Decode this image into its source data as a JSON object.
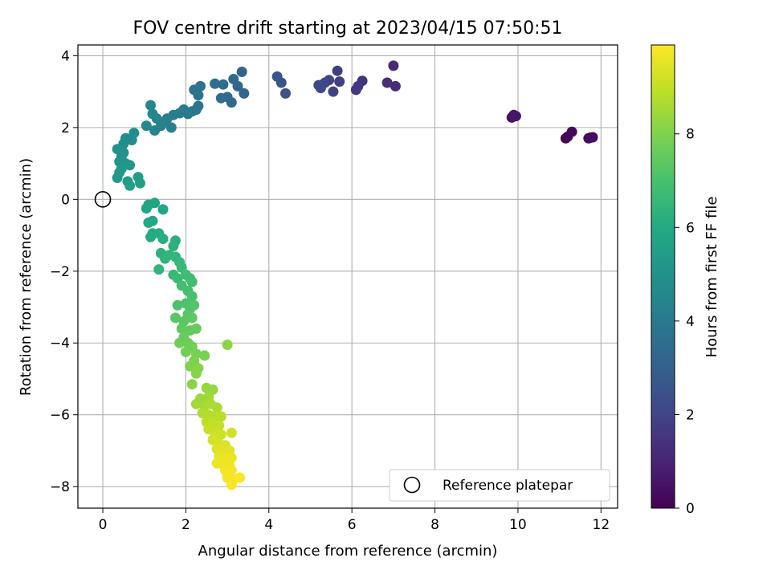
{
  "chart_data": {
    "type": "scatter",
    "title": "FOV centre drift starting at 2023/04/15 07:50:51",
    "xlabel": "Angular distance from reference (arcmin)",
    "ylabel": "Rotation from reference (arcmin)",
    "xlim": [
      -0.6,
      12.4
    ],
    "ylim": [
      -8.6,
      4.3
    ],
    "xticks": [
      0,
      2,
      4,
      6,
      8,
      10,
      12
    ],
    "yticks": [
      -8,
      -6,
      -4,
      -2,
      0,
      2,
      4
    ],
    "grid": true,
    "legend": {
      "position": "bottom-right",
      "entries": [
        "Reference platepar"
      ]
    },
    "reference_point": {
      "x": 0,
      "y": 0
    },
    "colorbar": {
      "label": "Hours from first FF file",
      "colormap": "viridis",
      "range": [
        0,
        9.9
      ],
      "ticks": [
        0,
        2,
        4,
        6,
        8
      ]
    },
    "series": [
      {
        "points": [
          {
            "x": 11.15,
            "y": 1.7,
            "c": 0.1
          },
          {
            "x": 11.2,
            "y": 1.75,
            "c": 0.15
          },
          {
            "x": 11.3,
            "y": 1.88,
            "c": 0.2
          },
          {
            "x": 11.7,
            "y": 1.7,
            "c": 0.25
          },
          {
            "x": 11.8,
            "y": 1.73,
            "c": 0.3
          },
          {
            "x": 11.75,
            "y": 1.72,
            "c": 0.35
          },
          {
            "x": 9.85,
            "y": 2.28,
            "c": 0.5
          },
          {
            "x": 9.9,
            "y": 2.35,
            "c": 0.55
          },
          {
            "x": 9.95,
            "y": 2.32,
            "c": 0.6
          },
          {
            "x": 7.0,
            "y": 3.72,
            "c": 1.2
          },
          {
            "x": 7.05,
            "y": 3.15,
            "c": 1.25
          },
          {
            "x": 6.85,
            "y": 3.25,
            "c": 1.3
          },
          {
            "x": 6.25,
            "y": 3.3,
            "c": 1.5
          },
          {
            "x": 6.15,
            "y": 3.15,
            "c": 1.55
          },
          {
            "x": 6.1,
            "y": 3.05,
            "c": 1.6
          },
          {
            "x": 5.65,
            "y": 3.58,
            "c": 1.8
          },
          {
            "x": 5.7,
            "y": 3.28,
            "c": 1.85
          },
          {
            "x": 5.55,
            "y": 3.0,
            "c": 1.9
          },
          {
            "x": 5.45,
            "y": 3.32,
            "c": 2.0
          },
          {
            "x": 5.35,
            "y": 3.25,
            "c": 2.05
          },
          {
            "x": 5.25,
            "y": 3.1,
            "c": 2.1
          },
          {
            "x": 5.2,
            "y": 3.18,
            "c": 2.15
          },
          {
            "x": 4.4,
            "y": 2.95,
            "c": 2.5
          },
          {
            "x": 4.3,
            "y": 3.25,
            "c": 2.55
          },
          {
            "x": 4.2,
            "y": 3.42,
            "c": 2.6
          },
          {
            "x": 3.35,
            "y": 3.55,
            "c": 3.2
          },
          {
            "x": 3.4,
            "y": 2.95,
            "c": 3.25
          },
          {
            "x": 3.25,
            "y": 3.15,
            "c": 3.3
          },
          {
            "x": 3.15,
            "y": 3.35,
            "c": 3.35
          },
          {
            "x": 3.1,
            "y": 2.7,
            "c": 3.4
          },
          {
            "x": 3.0,
            "y": 2.85,
            "c": 3.45
          },
          {
            "x": 2.9,
            "y": 3.2,
            "c": 3.5
          },
          {
            "x": 2.85,
            "y": 2.82,
            "c": 3.55
          },
          {
            "x": 2.7,
            "y": 3.22,
            "c": 3.6
          },
          {
            "x": 2.35,
            "y": 3.15,
            "c": 3.7
          },
          {
            "x": 2.3,
            "y": 2.9,
            "c": 3.75
          },
          {
            "x": 2.2,
            "y": 3.05,
            "c": 3.8
          },
          {
            "x": 2.3,
            "y": 2.6,
            "c": 3.85
          },
          {
            "x": 2.25,
            "y": 2.5,
            "c": 3.9
          },
          {
            "x": 2.15,
            "y": 2.45,
            "c": 3.95
          },
          {
            "x": 2.05,
            "y": 2.38,
            "c": 4.0
          },
          {
            "x": 1.95,
            "y": 2.5,
            "c": 4.05
          },
          {
            "x": 1.85,
            "y": 2.4,
            "c": 4.1
          },
          {
            "x": 1.7,
            "y": 2.35,
            "c": 4.15
          },
          {
            "x": 1.65,
            "y": 2.0,
            "c": 4.2
          },
          {
            "x": 1.55,
            "y": 2.25,
            "c": 4.25
          },
          {
            "x": 1.45,
            "y": 2.15,
            "c": 4.3
          },
          {
            "x": 1.4,
            "y": 2.05,
            "c": 4.35
          },
          {
            "x": 1.3,
            "y": 2.25,
            "c": 4.4
          },
          {
            "x": 1.25,
            "y": 1.92,
            "c": 4.45
          },
          {
            "x": 1.2,
            "y": 2.38,
            "c": 4.5
          },
          {
            "x": 1.15,
            "y": 2.62,
            "c": 4.55
          },
          {
            "x": 1.05,
            "y": 2.05,
            "c": 4.6
          },
          {
            "x": 0.75,
            "y": 1.85,
            "c": 4.7
          },
          {
            "x": 0.7,
            "y": 1.65,
            "c": 4.75
          },
          {
            "x": 0.55,
            "y": 1.7,
            "c": 4.8
          },
          {
            "x": 0.5,
            "y": 1.55,
            "c": 4.85
          },
          {
            "x": 0.45,
            "y": 1.4,
            "c": 4.9
          },
          {
            "x": 0.35,
            "y": 1.4,
            "c": 4.95
          },
          {
            "x": 0.5,
            "y": 1.3,
            "c": 5.0
          },
          {
            "x": 0.45,
            "y": 1.2,
            "c": 5.05
          },
          {
            "x": 0.4,
            "y": 1.05,
            "c": 5.1
          },
          {
            "x": 0.55,
            "y": 1.0,
            "c": 5.15
          },
          {
            "x": 0.65,
            "y": 0.95,
            "c": 5.2
          },
          {
            "x": 0.45,
            "y": 0.85,
            "c": 5.25
          },
          {
            "x": 0.4,
            "y": 0.75,
            "c": 5.3
          },
          {
            "x": 0.35,
            "y": 0.6,
            "c": 5.35
          },
          {
            "x": 0.6,
            "y": 0.5,
            "c": 5.4
          },
          {
            "x": 0.65,
            "y": 0.38,
            "c": 5.45
          },
          {
            "x": 0.85,
            "y": 0.62,
            "c": 5.5
          },
          {
            "x": 0.9,
            "y": 0.45,
            "c": 5.55
          },
          {
            "x": 1.1,
            "y": -0.15,
            "c": 5.7
          },
          {
            "x": 1.05,
            "y": -0.25,
            "c": 5.75
          },
          {
            "x": 1.25,
            "y": -0.1,
            "c": 5.8
          },
          {
            "x": 1.45,
            "y": -0.28,
            "c": 5.85
          },
          {
            "x": 1.2,
            "y": -0.6,
            "c": 5.9
          },
          {
            "x": 1.1,
            "y": -0.65,
            "c": 5.95
          },
          {
            "x": 1.2,
            "y": -0.95,
            "c": 6.0
          },
          {
            "x": 1.15,
            "y": -1.05,
            "c": 6.05
          },
          {
            "x": 1.35,
            "y": -0.95,
            "c": 6.1
          },
          {
            "x": 1.45,
            "y": -1.1,
            "c": 6.15
          },
          {
            "x": 1.75,
            "y": -1.15,
            "c": 6.2
          },
          {
            "x": 1.7,
            "y": -1.3,
            "c": 6.25
          },
          {
            "x": 1.4,
            "y": -1.5,
            "c": 6.3
          },
          {
            "x": 1.5,
            "y": -1.65,
            "c": 6.35
          },
          {
            "x": 1.35,
            "y": -1.95,
            "c": 6.4
          },
          {
            "x": 1.6,
            "y": -1.55,
            "c": 6.45
          },
          {
            "x": 1.75,
            "y": -1.6,
            "c": 6.5
          },
          {
            "x": 1.85,
            "y": -1.75,
            "c": 6.55
          },
          {
            "x": 1.9,
            "y": -1.9,
            "c": 6.6
          },
          {
            "x": 1.7,
            "y": -2.1,
            "c": 6.65
          },
          {
            "x": 1.8,
            "y": -2.2,
            "c": 6.7
          },
          {
            "x": 2.0,
            "y": -2.1,
            "c": 6.75
          },
          {
            "x": 2.1,
            "y": -2.2,
            "c": 6.8
          },
          {
            "x": 2.15,
            "y": -2.3,
            "c": 6.85
          },
          {
            "x": 1.9,
            "y": -2.4,
            "c": 6.9
          },
          {
            "x": 2.05,
            "y": -2.55,
            "c": 6.95
          },
          {
            "x": 2.15,
            "y": -2.7,
            "c": 7.0
          },
          {
            "x": 1.8,
            "y": -2.95,
            "c": 7.05
          },
          {
            "x": 2.0,
            "y": -2.9,
            "c": 7.1
          },
          {
            "x": 2.1,
            "y": -3.05,
            "c": 7.15
          },
          {
            "x": 2.2,
            "y": -2.95,
            "c": 7.2
          },
          {
            "x": 2.05,
            "y": -3.2,
            "c": 7.25
          },
          {
            "x": 1.75,
            "y": -3.3,
            "c": 7.3
          },
          {
            "x": 1.95,
            "y": -3.4,
            "c": 7.35
          },
          {
            "x": 2.15,
            "y": -3.3,
            "c": 7.4
          },
          {
            "x": 1.9,
            "y": -3.6,
            "c": 7.45
          },
          {
            "x": 2.1,
            "y": -3.65,
            "c": 7.5
          },
          {
            "x": 2.25,
            "y": -3.6,
            "c": 7.55
          },
          {
            "x": 1.95,
            "y": -3.85,
            "c": 7.6
          },
          {
            "x": 2.05,
            "y": -4.0,
            "c": 7.65
          },
          {
            "x": 1.85,
            "y": -4.0,
            "c": 7.7
          },
          {
            "x": 2.15,
            "y": -4.1,
            "c": 7.75
          },
          {
            "x": 2.0,
            "y": -4.25,
            "c": 7.8
          },
          {
            "x": 2.25,
            "y": -4.3,
            "c": 7.85
          },
          {
            "x": 2.45,
            "y": -4.35,
            "c": 7.9
          },
          {
            "x": 2.2,
            "y": -4.5,
            "c": 7.95
          },
          {
            "x": 2.1,
            "y": -4.65,
            "c": 8.0
          },
          {
            "x": 2.3,
            "y": -4.7,
            "c": 8.05
          },
          {
            "x": 2.25,
            "y": -4.85,
            "c": 8.1
          },
          {
            "x": 2.15,
            "y": -5.15,
            "c": 8.15
          },
          {
            "x": 3.0,
            "y": -4.05,
            "c": 8.2
          },
          {
            "x": 2.5,
            "y": -5.25,
            "c": 8.3
          },
          {
            "x": 2.65,
            "y": -5.3,
            "c": 8.35
          },
          {
            "x": 2.35,
            "y": -5.55,
            "c": 8.4
          },
          {
            "x": 2.55,
            "y": -5.5,
            "c": 8.45
          },
          {
            "x": 2.25,
            "y": -5.7,
            "c": 8.5
          },
          {
            "x": 2.45,
            "y": -5.75,
            "c": 8.55
          },
          {
            "x": 2.6,
            "y": -5.7,
            "c": 8.6
          },
          {
            "x": 2.75,
            "y": -5.8,
            "c": 8.65
          },
          {
            "x": 2.4,
            "y": -5.95,
            "c": 8.7
          },
          {
            "x": 2.55,
            "y": -6.0,
            "c": 8.75
          },
          {
            "x": 2.7,
            "y": -6.05,
            "c": 8.8
          },
          {
            "x": 2.85,
            "y": -6.05,
            "c": 8.85
          },
          {
            "x": 2.5,
            "y": -6.2,
            "c": 8.9
          },
          {
            "x": 2.65,
            "y": -6.25,
            "c": 8.95
          },
          {
            "x": 2.8,
            "y": -6.3,
            "c": 9.0
          },
          {
            "x": 2.55,
            "y": -6.4,
            "c": 9.05
          },
          {
            "x": 2.7,
            "y": -6.5,
            "c": 9.1
          },
          {
            "x": 2.85,
            "y": -6.55,
            "c": 9.15
          },
          {
            "x": 3.1,
            "y": -6.5,
            "c": 9.2
          },
          {
            "x": 2.65,
            "y": -6.7,
            "c": 9.25
          },
          {
            "x": 2.8,
            "y": -6.8,
            "c": 9.3
          },
          {
            "x": 2.95,
            "y": -6.85,
            "c": 9.35
          },
          {
            "x": 2.75,
            "y": -6.95,
            "c": 9.4
          },
          {
            "x": 2.9,
            "y": -7.0,
            "c": 9.45
          },
          {
            "x": 3.05,
            "y": -7.0,
            "c": 9.5
          },
          {
            "x": 2.8,
            "y": -7.15,
            "c": 9.55
          },
          {
            "x": 2.95,
            "y": -7.2,
            "c": 9.6
          },
          {
            "x": 3.1,
            "y": -7.2,
            "c": 9.62
          },
          {
            "x": 2.75,
            "y": -7.35,
            "c": 9.65
          },
          {
            "x": 2.9,
            "y": -7.4,
            "c": 9.68
          },
          {
            "x": 3.05,
            "y": -7.4,
            "c": 9.7
          },
          {
            "x": 2.95,
            "y": -7.55,
            "c": 9.72
          },
          {
            "x": 3.1,
            "y": -7.55,
            "c": 9.75
          },
          {
            "x": 3.0,
            "y": -7.75,
            "c": 9.78
          },
          {
            "x": 3.15,
            "y": -7.8,
            "c": 9.8
          },
          {
            "x": 3.1,
            "y": -7.95,
            "c": 9.82
          },
          {
            "x": 3.3,
            "y": -7.75,
            "c": 9.85
          }
        ]
      }
    ]
  }
}
